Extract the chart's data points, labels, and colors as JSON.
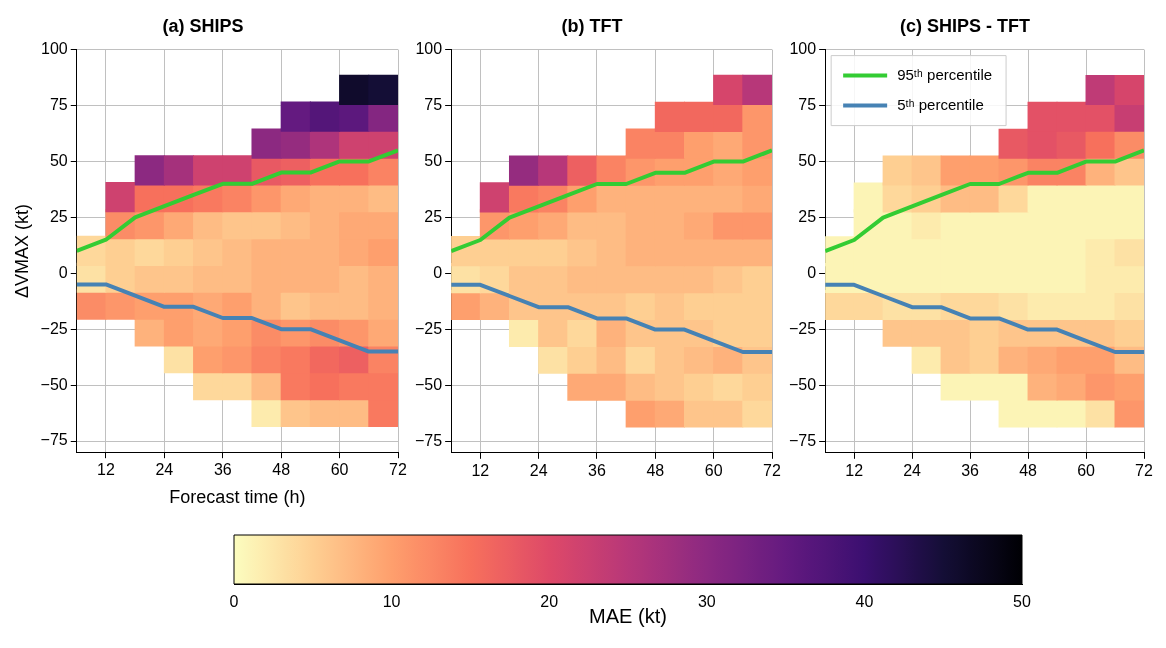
{
  "chart_data": [
    {
      "type": "scatter",
      "title": "(a) SHIPS",
      "xlabel": "Forecast time (h)",
      "ylabel": "ΔVMAX (kt)",
      "xlim": [
        6,
        72
      ],
      "xticks": [
        12,
        24,
        36,
        48,
        60,
        72
      ],
      "ylim": [
        -80,
        100
      ],
      "yticks": [
        -75,
        -50,
        -25,
        0,
        25,
        50,
        75,
        100
      ],
      "grid": true,
      "clim": [
        0,
        50
      ],
      "cticks": [
        0,
        10,
        20,
        30,
        40,
        50
      ],
      "clabel": "MAE (kt)",
      "series": [
        {
          "type": "scatter",
          "marker": "square",
          "x": [
            63,
            69
          ],
          "values": [
            82,
            82
          ],
          "colors": [
            "#100b2c",
            "#140e36"
          ]
        },
        {
          "type": "scatter",
          "marker": "square",
          "x": [
            51,
            57,
            63,
            69
          ],
          "values": [
            70,
            70,
            70,
            70
          ],
          "colors": [
            "#641a80",
            "#541679",
            "#5c187d",
            "#842681"
          ]
        },
        {
          "type": "scatter",
          "marker": "square",
          "x": [
            45,
            51,
            57,
            63,
            69
          ],
          "values": [
            58,
            58,
            58,
            58,
            58
          ],
          "colors": [
            "#8c2981",
            "#952c7f",
            "#ae347b",
            "#ce426f",
            "#ce426f"
          ]
        },
        {
          "type": "scatter",
          "marker": "square",
          "x": [
            21,
            27,
            33,
            39,
            45,
            51,
            57,
            63,
            69
          ],
          "values": [
            46,
            46,
            46,
            46,
            46,
            46,
            46,
            46,
            46
          ],
          "colors": [
            "#8c2981",
            "#a5317c",
            "#ce426f",
            "#ce426f",
            "#e85963",
            "#ed6061",
            "#f7705c",
            "#f7705c",
            "#fa8363"
          ]
        },
        {
          "type": "scatter",
          "marker": "square",
          "x": [
            15,
            21,
            27,
            33,
            39,
            45,
            51,
            57,
            63,
            69
          ],
          "values": [
            34,
            34,
            34,
            34,
            34,
            34,
            34,
            34,
            34,
            34
          ],
          "colors": [
            "#ce426f",
            "#f7705c",
            "#f7705c",
            "#f9795f",
            "#fa8363",
            "#fd966a",
            "#fea975",
            "#feb27c",
            "#feb27c",
            "#febc84"
          ]
        },
        {
          "type": "scatter",
          "marker": "square",
          "x": [
            15,
            21,
            27,
            33,
            39,
            45,
            51,
            57,
            63,
            69
          ],
          "values": [
            22,
            22,
            22,
            22,
            22,
            22,
            22,
            22,
            22,
            22
          ],
          "colors": [
            "#fb8c66",
            "#fd966a",
            "#fea975",
            "#febc84",
            "#fec58b",
            "#fec58b",
            "#febc84",
            "#feb27c",
            "#fea975",
            "#fea975"
          ]
        },
        {
          "type": "scatter",
          "marker": "square",
          "x": [
            9,
            15,
            21,
            27,
            33,
            39,
            45,
            51,
            57,
            63,
            69
          ],
          "values": [
            10,
            10,
            10,
            10,
            10,
            10,
            10,
            10,
            10,
            10,
            10
          ],
          "colors": [
            "#fed89b",
            "#fecf92",
            "#fed89b",
            "#fecf92",
            "#fec58b",
            "#febc84",
            "#feb27c",
            "#feb27c",
            "#feb27c",
            "#fea975",
            "#fe9f6d"
          ]
        },
        {
          "type": "scatter",
          "marker": "square",
          "x": [
            9,
            15,
            21,
            27,
            33,
            39,
            45,
            51,
            57,
            63,
            69
          ],
          "values": [
            -2,
            -2,
            -2,
            -2,
            -2,
            -2,
            -2,
            -2,
            -2,
            -2,
            -2
          ],
          "colors": [
            "#fde1a4",
            "#fecf92",
            "#fec58b",
            "#fec58b",
            "#febc84",
            "#febc84",
            "#feb27c",
            "#feb27c",
            "#feb27c",
            "#febc84",
            "#feb27c"
          ]
        },
        {
          "type": "scatter",
          "marker": "square",
          "x": [
            9,
            15,
            21,
            27,
            33,
            39,
            45,
            51,
            57,
            63,
            69
          ],
          "values": [
            -14,
            -14,
            -14,
            -14,
            -14,
            -14,
            -14,
            -14,
            -14,
            -14,
            -14
          ],
          "colors": [
            "#fb8c66",
            "#fd966a",
            "#fe9f6d",
            "#fe9f6d",
            "#fea975",
            "#fe9f6d",
            "#feb27c",
            "#fec58b",
            "#febc84",
            "#febc84",
            "#feb27c"
          ]
        },
        {
          "type": "scatter",
          "marker": "square",
          "x": [
            21,
            27,
            33,
            39,
            45,
            51,
            57,
            63,
            69
          ],
          "values": [
            -26,
            -26,
            -26,
            -26,
            -26,
            -26,
            -26,
            -26,
            -26
          ],
          "colors": [
            "#feb27c",
            "#fe9f6d",
            "#fea975",
            "#fe9f6d",
            "#fb8c66",
            "#fd966a",
            "#fb8c66",
            "#fd966a",
            "#fea975"
          ]
        },
        {
          "type": "scatter",
          "marker": "square",
          "x": [
            27,
            33,
            39,
            45,
            51,
            57,
            63,
            69
          ],
          "values": [
            -38,
            -38,
            -38,
            -38,
            -38,
            -38,
            -38,
            -38
          ],
          "colors": [
            "#fde1a4",
            "#fe9f6d",
            "#fd966a",
            "#fa8363",
            "#f9795f",
            "#f2685e",
            "#ed6061",
            "#fa8363"
          ]
        },
        {
          "type": "scatter",
          "marker": "square",
          "x": [
            33,
            39,
            45,
            51,
            57,
            63,
            69
          ],
          "values": [
            -50,
            -50,
            -50,
            -50,
            -50,
            -50,
            -50
          ],
          "colors": [
            "#fed89b",
            "#fed89b",
            "#febc84",
            "#f9795f",
            "#f7705c",
            "#f9795f",
            "#f9795f"
          ]
        },
        {
          "type": "scatter",
          "marker": "square",
          "x": [
            45,
            51,
            57,
            63,
            69
          ],
          "values": [
            -62,
            -62,
            -62,
            -62,
            -62
          ],
          "colors": [
            "#fdebad",
            "#fec58b",
            "#febc84",
            "#febc84",
            "#f9795f"
          ]
        },
        {
          "type": "line",
          "marker": "none",
          "color": "#33cc33",
          "x": [
            6,
            12,
            18,
            24,
            30,
            36,
            42,
            48,
            54,
            60,
            66,
            72
          ],
          "values": [
            10,
            15,
            25,
            30,
            35,
            40,
            40,
            45,
            45,
            50,
            50,
            55
          ]
        },
        {
          "type": "line",
          "marker": "none",
          "color": "#4682b4",
          "x": [
            6,
            12,
            18,
            24,
            30,
            36,
            42,
            48,
            54,
            60,
            66,
            72
          ],
          "values": [
            -5,
            -5,
            -10,
            -15,
            -15,
            -20,
            -20,
            -25,
            -25,
            -30,
            -35,
            -35
          ]
        }
      ]
    },
    {
      "type": "scatter",
      "title": "(b) TFT",
      "xlim": [
        6,
        72
      ],
      "xticks": [
        12,
        24,
        36,
        48,
        60,
        72
      ],
      "ylim": [
        -80,
        100
      ],
      "yticks": [
        -75,
        -50,
        -25,
        0,
        25,
        50,
        75,
        100
      ],
      "grid": true,
      "series": [
        {
          "type": "scatter",
          "marker": "square",
          "x": [
            63,
            69
          ],
          "values": [
            82,
            82
          ],
          "colors": [
            "#d6456b",
            "#b73779"
          ]
        },
        {
          "type": "scatter",
          "marker": "square",
          "x": [
            51,
            57,
            63,
            69
          ],
          "values": [
            70,
            70,
            70,
            70
          ],
          "colors": [
            "#f2685e",
            "#f2685e",
            "#f2685e",
            "#fd966a"
          ]
        },
        {
          "type": "scatter",
          "marker": "square",
          "x": [
            45,
            51,
            57,
            63,
            69
          ],
          "values": [
            58,
            58,
            58,
            58,
            58
          ],
          "colors": [
            "#fa8363",
            "#fa8363",
            "#fe9f6d",
            "#fea975",
            "#fd966a"
          ]
        },
        {
          "type": "scatter",
          "marker": "square",
          "x": [
            21,
            27,
            33,
            39,
            45,
            51,
            57,
            63,
            69
          ],
          "values": [
            46,
            46,
            46,
            46,
            46,
            46,
            46,
            46,
            46
          ],
          "colors": [
            "#952c7f",
            "#b73779",
            "#ed6061",
            "#fa8363",
            "#fd966a",
            "#fe9f6d",
            "#fe9f6d",
            "#fea975",
            "#fe9f6d"
          ]
        },
        {
          "type": "scatter",
          "marker": "square",
          "x": [
            15,
            21,
            27,
            33,
            39,
            45,
            51,
            57,
            63,
            69
          ],
          "values": [
            34,
            34,
            34,
            34,
            34,
            34,
            34,
            34,
            34,
            34
          ],
          "colors": [
            "#ce426f",
            "#f9795f",
            "#fa8363",
            "#fe9f6d",
            "#feb27c",
            "#feb27c",
            "#feb27c",
            "#feb27c",
            "#feb27c",
            "#fea975"
          ]
        },
        {
          "type": "scatter",
          "marker": "square",
          "x": [
            15,
            21,
            27,
            33,
            39,
            45,
            51,
            57,
            63,
            69
          ],
          "values": [
            22,
            22,
            22,
            22,
            22,
            22,
            22,
            22,
            22,
            22
          ],
          "colors": [
            "#fd966a",
            "#fe9f6d",
            "#fea975",
            "#febc84",
            "#febc84",
            "#feb27c",
            "#feb27c",
            "#fea975",
            "#fd966a",
            "#fd966a"
          ]
        },
        {
          "type": "scatter",
          "marker": "square",
          "x": [
            9,
            15,
            21,
            27,
            33,
            39,
            45,
            51,
            57,
            63,
            69
          ],
          "values": [
            10,
            10,
            10,
            10,
            10,
            10,
            10,
            10,
            10,
            10,
            10
          ],
          "colors": [
            "#fecf92",
            "#fecf92",
            "#fecf92",
            "#fecf92",
            "#fec58b",
            "#febc84",
            "#feb27c",
            "#feb27c",
            "#feb27c",
            "#feb27c",
            "#feb27c"
          ]
        },
        {
          "type": "scatter",
          "marker": "square",
          "x": [
            9,
            15,
            21,
            27,
            33,
            39,
            45,
            51,
            57,
            63,
            69
          ],
          "values": [
            -2,
            -2,
            -2,
            -2,
            -2,
            -2,
            -2,
            -2,
            -2,
            -2,
            -2
          ],
          "colors": [
            "#fde1a4",
            "#fed89b",
            "#fec58b",
            "#fec58b",
            "#febc84",
            "#febc84",
            "#febc84",
            "#febc84",
            "#febc84",
            "#fec58b",
            "#fecf92"
          ]
        },
        {
          "type": "scatter",
          "marker": "square",
          "x": [
            9,
            15,
            21,
            27,
            33,
            39,
            45,
            51,
            57,
            63,
            69
          ],
          "values": [
            -14,
            -14,
            -14,
            -14,
            -14,
            -14,
            -14,
            -14,
            -14,
            -14,
            -14
          ],
          "colors": [
            "#fe9f6d",
            "#feb27c",
            "#fec58b",
            "#fec58b",
            "#fec58b",
            "#fec58b",
            "#fecf92",
            "#fec58b",
            "#fecf92",
            "#fecf92",
            "#fecf92"
          ]
        },
        {
          "type": "scatter",
          "marker": "square",
          "x": [
            21,
            27,
            33,
            39,
            45,
            51,
            57,
            63,
            69
          ],
          "values": [
            -26,
            -26,
            -26,
            -26,
            -26,
            -26,
            -26,
            -26,
            -26
          ],
          "colors": [
            "#fdebad",
            "#fec58b",
            "#fed89b",
            "#feb27c",
            "#fec58b",
            "#fec58b",
            "#fec58b",
            "#fecf92",
            "#fecf92"
          ]
        },
        {
          "type": "scatter",
          "marker": "square",
          "x": [
            27,
            33,
            39,
            45,
            51,
            57,
            63,
            69
          ],
          "values": [
            -38,
            -38,
            -38,
            -38,
            -38,
            -38,
            -38,
            -38
          ],
          "colors": [
            "#fde1a4",
            "#fecf92",
            "#febc84",
            "#fed89b",
            "#fec58b",
            "#febc84",
            "#feb27c",
            "#fec58b"
          ]
        },
        {
          "type": "scatter",
          "marker": "square",
          "x": [
            33,
            39,
            45,
            51,
            57,
            63,
            69
          ],
          "values": [
            -50,
            -50,
            -50,
            -50,
            -50,
            -50,
            -50
          ],
          "colors": [
            "#fea975",
            "#fea975",
            "#febc84",
            "#fec58b",
            "#fecf92",
            "#fed89b",
            "#fecf92"
          ]
        },
        {
          "type": "scatter",
          "marker": "square",
          "x": [
            45,
            51,
            57,
            63,
            69
          ],
          "values": [
            -62,
            -62,
            -62,
            -62,
            -62
          ],
          "colors": [
            "#fe9f6d",
            "#fea975",
            "#fec58b",
            "#fec58b",
            "#fed89b"
          ]
        },
        {
          "type": "line",
          "marker": "none",
          "color": "#33cc33",
          "x": [
            6,
            12,
            18,
            24,
            30,
            36,
            42,
            48,
            54,
            60,
            66,
            72
          ],
          "values": [
            10,
            15,
            25,
            30,
            35,
            40,
            40,
            45,
            45,
            50,
            50,
            55
          ]
        },
        {
          "type": "line",
          "marker": "none",
          "color": "#4682b4",
          "x": [
            6,
            12,
            18,
            24,
            30,
            36,
            42,
            48,
            54,
            60,
            66,
            72
          ],
          "values": [
            -5,
            -5,
            -10,
            -15,
            -15,
            -20,
            -20,
            -25,
            -25,
            -30,
            -35,
            -35
          ]
        }
      ]
    },
    {
      "type": "scatter",
      "title": "(c) SHIPS - TFT",
      "xlim": [
        6,
        72
      ],
      "xticks": [
        12,
        24,
        36,
        48,
        60,
        72
      ],
      "ylim": [
        -80,
        100
      ],
      "yticks": [
        -75,
        -50,
        -25,
        0,
        25,
        50,
        75,
        100
      ],
      "grid": true,
      "legend": "top left",
      "series": [
        {
          "type": "scatter",
          "marker": "square",
          "x": [
            63,
            69
          ],
          "values": [
            82,
            82
          ],
          "colors": [
            "#bf3b76",
            "#d6456b"
          ]
        },
        {
          "type": "scatter",
          "marker": "square",
          "x": [
            51,
            57,
            63,
            69
          ],
          "values": [
            70,
            70,
            70,
            70
          ],
          "colors": [
            "#e35166",
            "#e35166",
            "#e35166",
            "#c73e72"
          ]
        },
        {
          "type": "scatter",
          "marker": "square",
          "x": [
            45,
            51,
            57,
            63,
            69
          ],
          "values": [
            58,
            58,
            58,
            58,
            58
          ],
          "colors": [
            "#e85963",
            "#e35166",
            "#e85963",
            "#f7705c",
            "#fb8c66"
          ]
        },
        {
          "type": "scatter",
          "marker": "square",
          "x": [
            21,
            27,
            33,
            39,
            45,
            51,
            57,
            63,
            69
          ],
          "values": [
            46,
            46,
            46,
            46,
            46,
            46,
            46,
            46,
            46
          ],
          "colors": [
            "#fecf92",
            "#fec58b",
            "#fe9f6d",
            "#fe9f6d",
            "#fd966a",
            "#fa8363",
            "#fa8363",
            "#feb27c",
            "#fec58b"
          ]
        },
        {
          "type": "scatter",
          "marker": "square",
          "x": [
            15,
            21,
            27,
            33,
            39,
            45,
            51,
            57,
            63,
            69
          ],
          "values": [
            34,
            34,
            34,
            34,
            34,
            34,
            34,
            34,
            34,
            34
          ],
          "colors": [
            "#fcf4b6",
            "#fed89b",
            "#fecf92",
            "#febc84",
            "#febc84",
            "#fed89b",
            "#fcf4b6",
            "#fcf4b6",
            "#fcf4b6",
            "#fcf4b6"
          ]
        },
        {
          "type": "scatter",
          "marker": "square",
          "x": [
            15,
            21,
            27,
            33,
            39,
            45,
            51,
            57,
            63,
            69
          ],
          "values": [
            22,
            22,
            22,
            22,
            22,
            22,
            22,
            22,
            22,
            22
          ],
          "colors": [
            "#fcf4b6",
            "#fcf4b6",
            "#fdebad",
            "#fcf4b6",
            "#fcf4b6",
            "#fcf4b6",
            "#fcf4b6",
            "#fcf4b6",
            "#fcf4b6",
            "#fcf4b6"
          ]
        },
        {
          "type": "scatter",
          "marker": "square",
          "x": [
            9,
            15,
            21,
            27,
            33,
            39,
            45,
            51,
            57,
            63,
            69
          ],
          "values": [
            10,
            10,
            10,
            10,
            10,
            10,
            10,
            10,
            10,
            10,
            10
          ],
          "colors": [
            "#fcf4b6",
            "#fcf4b6",
            "#fcf4b6",
            "#fcf4b6",
            "#fcf4b6",
            "#fcf4b6",
            "#fcf4b6",
            "#fcf4b6",
            "#fcf4b6",
            "#fdebad",
            "#fde1a4"
          ]
        },
        {
          "type": "scatter",
          "marker": "square",
          "x": [
            9,
            15,
            21,
            27,
            33,
            39,
            45,
            51,
            57,
            63,
            69
          ],
          "values": [
            -2,
            -2,
            -2,
            -2,
            -2,
            -2,
            -2,
            -2,
            -2,
            -2,
            -2
          ],
          "colors": [
            "#fcf4b6",
            "#fcf4b6",
            "#fcf4b6",
            "#fcf4b6",
            "#fcf4b6",
            "#fcf4b6",
            "#fcf4b6",
            "#fcf4b6",
            "#fcf4b6",
            "#fdebad",
            "#fdebad"
          ]
        },
        {
          "type": "scatter",
          "marker": "square",
          "x": [
            9,
            15,
            21,
            27,
            33,
            39,
            45,
            51,
            57,
            63,
            69
          ],
          "values": [
            -14,
            -14,
            -14,
            -14,
            -14,
            -14,
            -14,
            -14,
            -14,
            -14,
            -14
          ],
          "colors": [
            "#fed89b",
            "#fed89b",
            "#fde1a4",
            "#fde1a4",
            "#fed89b",
            "#fed89b",
            "#fde1a4",
            "#fdebad",
            "#fdebad",
            "#fdebad",
            "#fde1a4"
          ]
        },
        {
          "type": "scatter",
          "marker": "square",
          "x": [
            21,
            27,
            33,
            39,
            45,
            51,
            57,
            63,
            69
          ],
          "values": [
            -26,
            -26,
            -26,
            -26,
            -26,
            -26,
            -26,
            -26,
            -26
          ],
          "colors": [
            "#fec58b",
            "#fec58b",
            "#fec58b",
            "#fecf92",
            "#fec58b",
            "#fec58b",
            "#fec58b",
            "#fec58b",
            "#fecf92"
          ]
        },
        {
          "type": "scatter",
          "marker": "square",
          "x": [
            27,
            33,
            39,
            45,
            51,
            57,
            63,
            69
          ],
          "values": [
            -38,
            -38,
            -38,
            -38,
            -38,
            -38,
            -38,
            -38
          ],
          "colors": [
            "#fdebad",
            "#fec58b",
            "#fecf92",
            "#feb27c",
            "#fea975",
            "#fe9f6d",
            "#fe9f6d",
            "#febc84"
          ]
        },
        {
          "type": "scatter",
          "marker": "square",
          "x": [
            33,
            39,
            45,
            51,
            57,
            63,
            69
          ],
          "values": [
            -50,
            -50,
            -50,
            -50,
            -50,
            -50,
            -50
          ],
          "colors": [
            "#fcf4b6",
            "#fcf4b6",
            "#fcf4b6",
            "#feb27c",
            "#fea975",
            "#fd966a",
            "#fe9f6d"
          ]
        },
        {
          "type": "scatter",
          "marker": "square",
          "x": [
            45,
            51,
            57,
            63,
            69
          ],
          "values": [
            -62,
            -62,
            -62,
            -62,
            -62
          ],
          "colors": [
            "#fcf4b6",
            "#fcf4b6",
            "#fcf4b6",
            "#fde1a4",
            "#fd966a"
          ]
        },
        {
          "type": "line",
          "marker": "none",
          "name": "95ᵗʰ percentile",
          "color": "#33cc33",
          "x": [
            6,
            12,
            18,
            24,
            30,
            36,
            42,
            48,
            54,
            60,
            66,
            72
          ],
          "values": [
            10,
            15,
            25,
            30,
            35,
            40,
            40,
            45,
            45,
            50,
            50,
            55
          ]
        },
        {
          "type": "line",
          "marker": "none",
          "name": "5ᵗʰ percentile",
          "color": "#4682b4",
          "x": [
            6,
            12,
            18,
            24,
            30,
            36,
            42,
            48,
            54,
            60,
            66,
            72
          ],
          "values": [
            -5,
            -5,
            -10,
            -15,
            -15,
            -20,
            -20,
            -25,
            -25,
            -30,
            -35,
            -35
          ]
        }
      ]
    }
  ]
}
